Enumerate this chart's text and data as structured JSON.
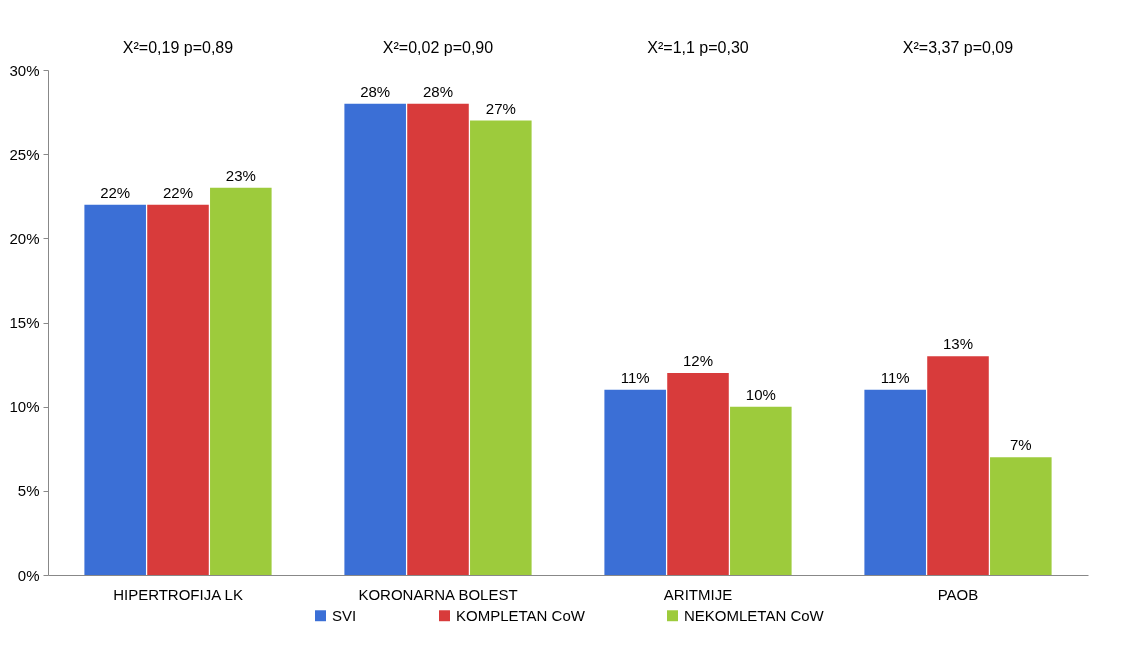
{
  "chart_data": {
    "type": "bar",
    "categories": [
      "HIPERTROFIJA LK",
      "KORONARNA BOLEST",
      "ARITMIJE",
      "PAOB"
    ],
    "series": [
      {
        "name": "SVI",
        "color": "#3b6fd6",
        "values": [
          22,
          28,
          11,
          11
        ],
        "value_labels": [
          "22%",
          "28%",
          "11%",
          "11%"
        ]
      },
      {
        "name": "KOMPLETAN CoW",
        "color": "#d83b3b",
        "values": [
          22,
          28,
          12,
          13
        ],
        "value_labels": [
          "22%",
          "28%",
          "12%",
          "13%"
        ]
      },
      {
        "name": "NEKOMLETAN CoW",
        "color": "#9dcb3c",
        "values": [
          23,
          27,
          10,
          7
        ],
        "value_labels": [
          "23%",
          "27%",
          "10%",
          "7%"
        ]
      }
    ],
    "ylim": [
      0,
      30
    ],
    "yticks": [
      {
        "value": 0,
        "label": "0%"
      },
      {
        "value": 5,
        "label": "5%"
      },
      {
        "value": 10,
        "label": "10%"
      },
      {
        "value": 15,
        "label": "15%"
      },
      {
        "value": 20,
        "label": "20%"
      },
      {
        "value": 25,
        "label": "25%"
      },
      {
        "value": 30,
        "label": "30%"
      }
    ],
    "grid": false,
    "legend": "bottom",
    "annotations": [
      "X²=0,19 p=0,89",
      "X²=0,02 p=0,90",
      "X²=1,1 p=0,30",
      "X²=3,37 p=0,09"
    ]
  }
}
